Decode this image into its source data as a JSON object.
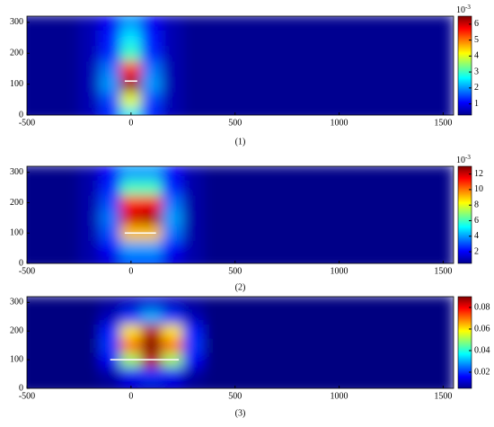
{
  "chart_data": [
    {
      "type": "heatmap",
      "caption": "(1)",
      "x": [
        -500,
        -400,
        -300,
        -200,
        -100,
        0,
        100,
        200,
        300,
        400,
        500,
        600,
        700,
        800,
        900,
        1000,
        1100,
        1200,
        1300,
        1400,
        1500
      ],
      "y": [
        0,
        50,
        100,
        150,
        200,
        250,
        300
      ],
      "z": [
        [
          0.4,
          0.4,
          0.4,
          0.6,
          1.2,
          2.5,
          1.2,
          0.6,
          0.4,
          0.4,
          0.4,
          0.4,
          0.4,
          0.4,
          0.4,
          0.4,
          0.4,
          0.4,
          0.4,
          0.4,
          0.4
        ],
        [
          0.4,
          0.4,
          0.4,
          0.6,
          1.5,
          4,
          1.5,
          0.6,
          0.4,
          0.4,
          0.4,
          0.4,
          0.4,
          0.4,
          0.4,
          0.4,
          0.4,
          0.4,
          0.4,
          0.4,
          0.4
        ],
        [
          0.4,
          0.4,
          0.4,
          0.6,
          2,
          6.3,
          2,
          0.6,
          0.4,
          0.4,
          0.4,
          0.4,
          0.4,
          0.4,
          0.4,
          0.4,
          0.4,
          0.4,
          0.4,
          0.4,
          0.4
        ],
        [
          0.4,
          0.4,
          0.4,
          0.6,
          1.8,
          5.5,
          1.8,
          0.6,
          0.4,
          0.4,
          0.4,
          0.4,
          0.4,
          0.4,
          0.4,
          0.4,
          0.4,
          0.4,
          0.4,
          0.4,
          0.4
        ],
        [
          0.4,
          0.4,
          0.4,
          0.6,
          1.3,
          3,
          1.3,
          0.6,
          0.4,
          0.4,
          0.4,
          0.4,
          0.4,
          0.4,
          0.4,
          0.4,
          0.4,
          0.4,
          0.4,
          0.4,
          0.4
        ],
        [
          0.4,
          0.4,
          0.4,
          0.6,
          1.2,
          2.5,
          1.2,
          0.6,
          0.4,
          0.4,
          0.4,
          0.4,
          0.4,
          0.4,
          0.4,
          0.4,
          0.4,
          0.4,
          0.4,
          0.4,
          0.4
        ],
        [
          0.4,
          0.4,
          0.4,
          0.6,
          1,
          2,
          1,
          0.6,
          0.4,
          0.4,
          0.4,
          0.4,
          0.4,
          0.4,
          0.4,
          0.4,
          0.4,
          0.4,
          0.4,
          0.4,
          0.4
        ]
      ],
      "line": {
        "x": [
          -30,
          30
        ],
        "y": [
          110,
          110
        ]
      },
      "xlim": [
        -500,
        1550
      ],
      "ylim": [
        0,
        320
      ],
      "xticks": [
        -500,
        0,
        500,
        1000,
        1500
      ],
      "yticks": [
        0,
        100,
        200,
        300
      ],
      "clim": [
        0.3,
        6.5
      ],
      "cticks": [
        1,
        2,
        3,
        4,
        5,
        6
      ],
      "cscale_base": "10",
      "cscale_exp": "-3"
    },
    {
      "type": "heatmap",
      "caption": "(2)",
      "x": [
        -500,
        -400,
        -300,
        -200,
        -100,
        0,
        100,
        200,
        300,
        400,
        500,
        600,
        700,
        800,
        900,
        1000,
        1100,
        1200,
        1300,
        1400,
        1500
      ],
      "y": [
        0,
        50,
        100,
        150,
        200,
        250,
        300
      ],
      "z": [
        [
          0.6,
          0.6,
          0.6,
          1,
          1.5,
          3,
          3,
          1.5,
          1,
          0.6,
          0.6,
          0.6,
          0.6,
          0.6,
          0.6,
          0.6,
          0.6,
          0.6,
          0.6,
          0.6,
          0.6
        ],
        [
          0.6,
          0.6,
          0.6,
          1,
          2,
          4,
          4,
          2,
          1,
          0.6,
          0.6,
          0.6,
          0.6,
          0.6,
          0.6,
          0.6,
          0.6,
          0.6,
          0.6,
          0.6,
          0.6
        ],
        [
          0.6,
          0.6,
          0.6,
          1,
          3,
          9,
          9,
          3.5,
          1,
          0.6,
          0.6,
          0.6,
          0.6,
          0.6,
          0.6,
          0.6,
          0.6,
          0.6,
          0.6,
          0.6,
          0.6
        ],
        [
          0.6,
          0.6,
          0.6,
          1,
          3.5,
          12,
          12.5,
          4,
          1,
          0.6,
          0.6,
          0.6,
          0.6,
          0.6,
          0.6,
          0.6,
          0.6,
          0.6,
          0.6,
          0.6,
          0.6
        ],
        [
          0.6,
          0.6,
          0.6,
          1,
          3,
          11,
          11.5,
          3.5,
          1,
          0.6,
          0.6,
          0.6,
          0.6,
          0.6,
          0.6,
          0.6,
          0.6,
          0.6,
          0.6,
          0.6,
          0.6
        ],
        [
          0.6,
          0.6,
          0.6,
          1,
          2.5,
          6,
          6,
          2.5,
          1,
          0.6,
          0.6,
          0.6,
          0.6,
          0.6,
          0.6,
          0.6,
          0.6,
          0.6,
          0.6,
          0.6,
          0.6
        ],
        [
          0.6,
          0.6,
          0.6,
          1,
          2,
          4,
          4,
          2,
          1,
          0.6,
          0.6,
          0.6,
          0.6,
          0.6,
          0.6,
          0.6,
          0.6,
          0.6,
          0.6,
          0.6,
          0.6
        ]
      ],
      "line": {
        "x": [
          -30,
          120
        ],
        "y": [
          100,
          100
        ]
      },
      "xlim": [
        -500,
        1550
      ],
      "ylim": [
        0,
        320
      ],
      "xticks": [
        -500,
        0,
        500,
        1000,
        1500
      ],
      "yticks": [
        0,
        100,
        200,
        300
      ],
      "clim": [
        0.5,
        13
      ],
      "cticks": [
        2,
        4,
        6,
        8,
        10,
        12
      ],
      "cscale_base": "10",
      "cscale_exp": "-3"
    },
    {
      "type": "heatmap",
      "caption": "(3)",
      "x": [
        -500,
        -400,
        -300,
        -200,
        -100,
        0,
        100,
        200,
        300,
        400,
        500,
        600,
        700,
        800,
        900,
        1000,
        1100,
        1200,
        1300,
        1400,
        1500
      ],
      "y": [
        0,
        50,
        100,
        150,
        200,
        250,
        300
      ],
      "z": [
        [
          0.005,
          0.005,
          0.005,
          0.005,
          0.006,
          0.01,
          0.01,
          0.01,
          0.006,
          0.005,
          0.005,
          0.005,
          0.005,
          0.005,
          0.005,
          0.005,
          0.005,
          0.005,
          0.005,
          0.005,
          0.005
        ],
        [
          0.005,
          0.005,
          0.005,
          0.005,
          0.008,
          0.015,
          0.02,
          0.015,
          0.008,
          0.005,
          0.005,
          0.005,
          0.005,
          0.005,
          0.005,
          0.005,
          0.005,
          0.005,
          0.005,
          0.005,
          0.005
        ],
        [
          0.005,
          0.005,
          0.005,
          0.005,
          0.015,
          0.05,
          0.085,
          0.05,
          0.015,
          0.005,
          0.005,
          0.005,
          0.005,
          0.005,
          0.005,
          0.005,
          0.005,
          0.005,
          0.005,
          0.005,
          0.005
        ],
        [
          0.005,
          0.005,
          0.005,
          0.005,
          0.02,
          0.07,
          0.09,
          0.07,
          0.02,
          0.005,
          0.005,
          0.005,
          0.005,
          0.005,
          0.005,
          0.005,
          0.005,
          0.005,
          0.005,
          0.005,
          0.005
        ],
        [
          0.005,
          0.005,
          0.005,
          0.005,
          0.018,
          0.06,
          0.085,
          0.06,
          0.018,
          0.005,
          0.005,
          0.005,
          0.005,
          0.005,
          0.005,
          0.005,
          0.005,
          0.005,
          0.005,
          0.005,
          0.005
        ],
        [
          0.005,
          0.005,
          0.005,
          0.005,
          0.01,
          0.02,
          0.03,
          0.02,
          0.01,
          0.005,
          0.005,
          0.005,
          0.005,
          0.005,
          0.005,
          0.005,
          0.005,
          0.005,
          0.005,
          0.005,
          0.005
        ],
        [
          0.005,
          0.005,
          0.005,
          0.005,
          0.007,
          0.01,
          0.012,
          0.01,
          0.007,
          0.005,
          0.005,
          0.005,
          0.005,
          0.005,
          0.005,
          0.005,
          0.005,
          0.005,
          0.005,
          0.005,
          0.005
        ]
      ],
      "line": {
        "x": [
          -100,
          230
        ],
        "y": [
          100,
          100
        ]
      },
      "xlim": [
        -500,
        1550
      ],
      "ylim": [
        0,
        320
      ],
      "xticks": [
        -500,
        0,
        500,
        1000,
        1500
      ],
      "yticks": [
        0,
        100,
        200,
        300
      ],
      "clim": [
        0.005,
        0.09
      ],
      "cticks": [
        0.02,
        0.04,
        0.06,
        0.08
      ]
    }
  ]
}
